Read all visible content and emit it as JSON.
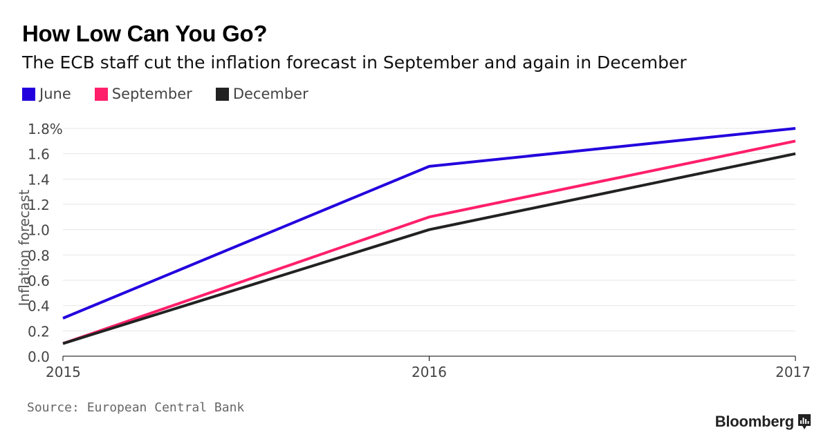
{
  "header": {
    "title": "How Low Can You Go?",
    "subtitle": "The ECB staff cut the inflation forecast in September and again in December"
  },
  "footer": {
    "source": "Source: European Central Bank",
    "brand": "Bloomberg"
  },
  "colors": {
    "june": "#2200dd",
    "september": "#ff1f6b",
    "december": "#222222",
    "grid": "#e6e6e6",
    "axis": "#000000"
  },
  "chart_data": {
    "type": "line",
    "title": "How Low Can You Go?",
    "subtitle": "The ECB staff cut the inflation forecast in September and again in December",
    "xlabel": "",
    "ylabel": "Inflation forecast",
    "x": [
      2015,
      2016,
      2017
    ],
    "xtick_labels": [
      "2015",
      "2016",
      "2017"
    ],
    "ylim": [
      0,
      1.8
    ],
    "yticks": [
      0,
      0.2,
      0.4,
      0.6,
      0.8,
      1.0,
      1.2,
      1.4,
      1.6,
      1.8
    ],
    "ytick_labels": [
      "0.0",
      "0.2",
      "0.4",
      "0.6",
      "0.8",
      "1.0",
      "1.2",
      "1.4",
      "1.6",
      "1.8%"
    ],
    "grid": true,
    "legend_position": "top-left",
    "series": [
      {
        "name": "June",
        "values": [
          0.3,
          1.5,
          1.8
        ],
        "color": "#2200dd"
      },
      {
        "name": "September",
        "values": [
          0.1,
          1.1,
          1.7
        ],
        "color": "#ff1f6b"
      },
      {
        "name": "December",
        "values": [
          0.1,
          1.0,
          1.6
        ],
        "color": "#222222"
      }
    ]
  }
}
